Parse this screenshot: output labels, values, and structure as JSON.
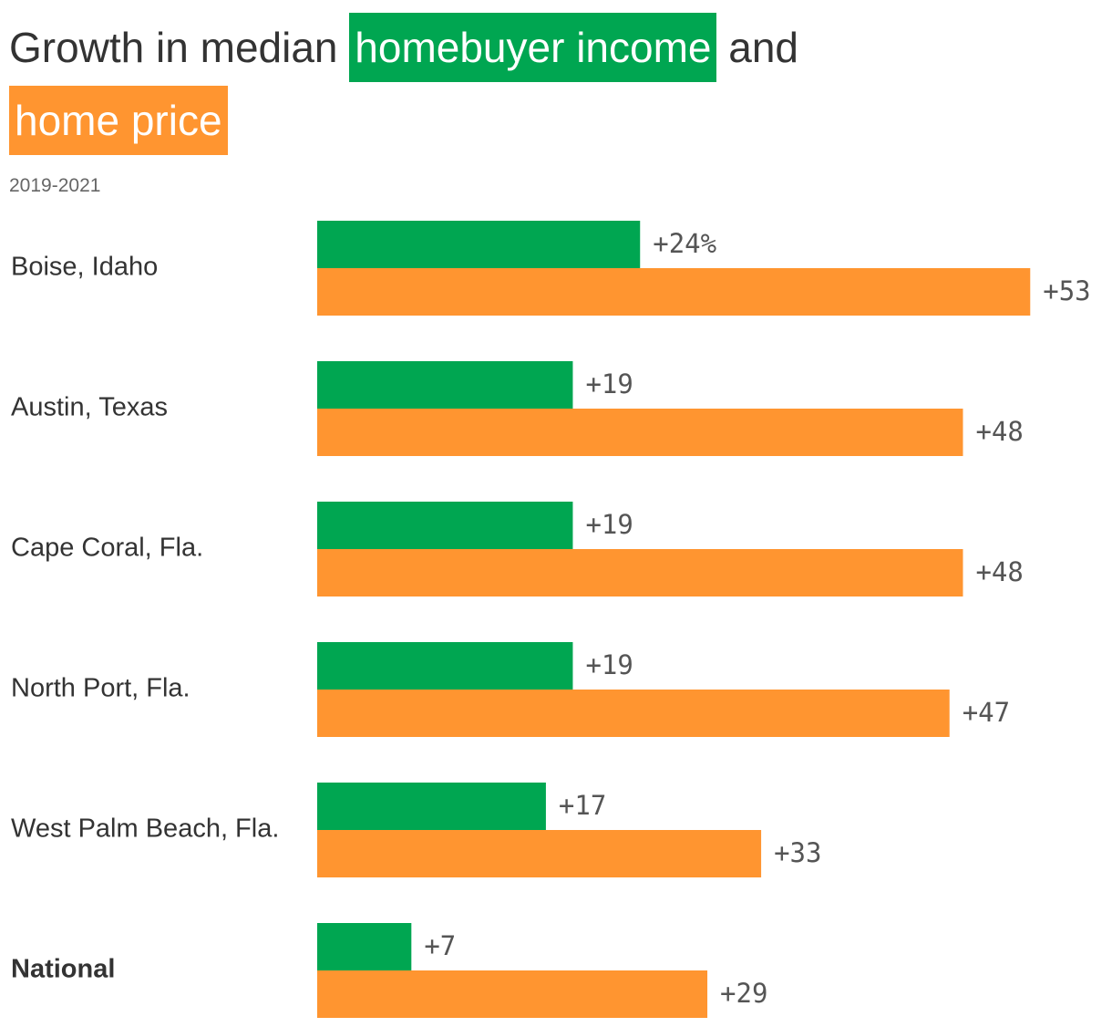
{
  "title": {
    "prefix": "Growth in median ",
    "series1": "homebuyer income",
    "middle": " and",
    "series2": "home price"
  },
  "subtitle": "2019-2021",
  "colors": {
    "income": "#00A651",
    "price": "#FF9530"
  },
  "chart_data": {
    "type": "bar",
    "orientation": "horizontal",
    "categories": [
      "Boise, Idaho",
      "Austin, Texas",
      "Cape Coral, Fla.",
      "North Port, Fla.",
      "West Palm Beach, Fla.",
      "National"
    ],
    "series": [
      {
        "name": "homebuyer income",
        "values": [
          24,
          19,
          19,
          19,
          17,
          7
        ],
        "labels": [
          "+24%",
          "+19",
          "+19",
          "+19",
          "+17",
          "+7"
        ]
      },
      {
        "name": "home price",
        "values": [
          53,
          48,
          48,
          47,
          33,
          29
        ],
        "labels": [
          "+53",
          "+48",
          "+48",
          "+47",
          "+33",
          "+29"
        ]
      }
    ],
    "unit": "%",
    "bold_categories": [
      "National"
    ],
    "grid": false,
    "legend": "title"
  }
}
